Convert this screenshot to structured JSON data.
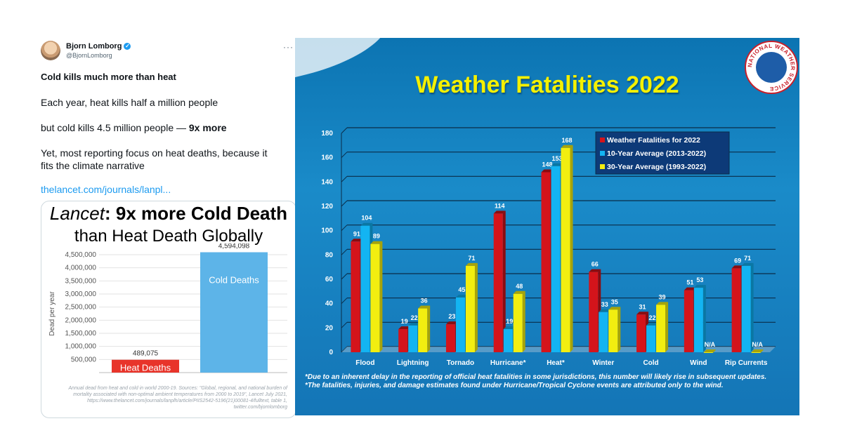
{
  "tweet": {
    "name": "Bjorn Lomborg",
    "handle": "@BjornLomborg",
    "headline": "Cold kills much more than heat",
    "line1": "Each year, heat kills half a million people",
    "line2_pre": "but cold kills 4.5 million people — ",
    "line2_bold": "9x more",
    "line3": "Yet, most reporting focus on heat deaths, because it",
    "line4": "fits the climate narrative",
    "link": "thelancet.com/journals/lanpl..."
  },
  "lancet_card": {
    "title_italic": "Lancet",
    "title_rest": ": 9x more Cold Death",
    "title_line2": "than Heat Death Globally",
    "source": "Annual dead from heat and cold in world 2000-19. Sources: \"Global, regional, and national burden of mortality associated with non-optimal ambient temperatures from 2000 to 2019\", Lancet July 2021, https://www.thelancet.com/journals/lanplh/article/PIIS2542-5196(21)00081-4/fulltext, table 1, twitter.com/bjornlomborg"
  },
  "chart_data": [
    {
      "type": "bar",
      "ylabel": "Dead per year",
      "ylim": [
        0,
        4500000
      ],
      "yticks": [
        "500,000",
        "1,000,000",
        "1,500,000",
        "2,000,000",
        "2,500,000",
        "3,000,000",
        "3,500,000",
        "4,000,000",
        "4,500,000"
      ],
      "categories": [
        "Heat Deaths",
        "Cold Deaths"
      ],
      "values": [
        489075,
        4594098
      ],
      "value_labels": [
        "489,075",
        "4,594,098"
      ],
      "colors": [
        "#e8342a",
        "#5db4e8"
      ]
    },
    {
      "type": "bar",
      "title": "Weather Fatalities 2022",
      "ylim": [
        0,
        180
      ],
      "yticks": [
        "0",
        "20",
        "40",
        "60",
        "80",
        "100",
        "120",
        "140",
        "160",
        "180"
      ],
      "categories": [
        "Flood",
        "Lightning",
        "Tornado",
        "Hurricane*",
        "Heat*",
        "Winter",
        "Cold",
        "Wind",
        "Rip Currents"
      ],
      "series": [
        {
          "name": "Weather Fatalities for 2022",
          "color": "#d4141b",
          "values": [
            91,
            19,
            23,
            114,
            148,
            66,
            31,
            51,
            69
          ],
          "labels": [
            "91",
            "19",
            "23",
            "114",
            "148",
            "66",
            "31",
            "51",
            "69"
          ]
        },
        {
          "name": "10-Year Average (2013-2022)",
          "color": "#13b4f2",
          "values": [
            104,
            22,
            45,
            19,
            153,
            33,
            22,
            53,
            71
          ],
          "labels": [
            "104",
            "22",
            "45",
            "19",
            "153",
            "33",
            "22",
            "53",
            "71"
          ]
        },
        {
          "name": "30-Year Average (1993-2022)",
          "color": "#f2ee10",
          "values": [
            89,
            36,
            71,
            48,
            168,
            35,
            39,
            0,
            0
          ],
          "labels": [
            "89",
            "36",
            "71",
            "48",
            "168",
            "35",
            "39",
            "N/A",
            "N/A"
          ]
        }
      ],
      "legend_position": "top-right",
      "footnote1": "*Due to an inherent delay in the reporting of official heat fatalities in some jurisdictions, this number will likely rise in subsequent updates.",
      "footnote2": "*The fatalities, injuries, and damage estimates found under Hurricane/Tropical Cyclone events are attributed only to the wind."
    }
  ],
  "nws_logo": {
    "text": "NATIONAL WEATHER SERVICE"
  }
}
